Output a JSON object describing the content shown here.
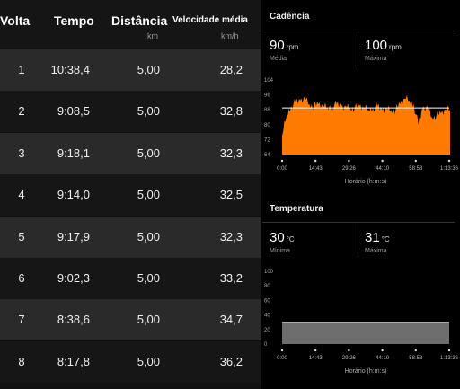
{
  "table": {
    "headers": {
      "lap": "Volta",
      "time": "Tempo",
      "distance": "Distância",
      "distance_unit": "km",
      "speed": "Velocidade média",
      "speed_unit": "km/h"
    },
    "rows": [
      {
        "lap": "1",
        "time": "10:38,4",
        "distance": "5,00",
        "speed": "28,2"
      },
      {
        "lap": "2",
        "time": "9:08,5",
        "distance": "5,00",
        "speed": "32,8"
      },
      {
        "lap": "3",
        "time": "9:18,1",
        "distance": "5,00",
        "speed": "32,3"
      },
      {
        "lap": "4",
        "time": "9:14,0",
        "distance": "5,00",
        "speed": "32,5"
      },
      {
        "lap": "5",
        "time": "9:17,9",
        "distance": "5,00",
        "speed": "32,3"
      },
      {
        "lap": "6",
        "time": "9:02,3",
        "distance": "5,00",
        "speed": "33,2"
      },
      {
        "lap": "7",
        "time": "8:38,6",
        "distance": "5,00",
        "speed": "34,7"
      },
      {
        "lap": "8",
        "time": "8:17,8",
        "distance": "5,00",
        "speed": "36,2"
      }
    ]
  },
  "cadence": {
    "title": "Cadência",
    "avg_value": "90",
    "avg_unit": "rpm",
    "avg_label": "Média",
    "max_value": "100",
    "max_unit": "rpm",
    "max_label": "Máxima"
  },
  "temperature": {
    "title": "Temperatura",
    "min_value": "30",
    "min_unit": "°C",
    "min_label": "Mínima",
    "max_value": "31",
    "max_unit": "°C",
    "max_label": "Máxima"
  },
  "colors": {
    "cadence_fill": "#ff7a00",
    "temperature_fill": "#6e6e6e",
    "avg_line": "#ffffff"
  },
  "chart_data": [
    {
      "type": "area",
      "title": "Cadência",
      "xlabel": "Horário (h:m:s)",
      "x_ticks": [
        "0:00",
        "14:43",
        "29:26",
        "44:10",
        "58:53",
        "1:13:36"
      ],
      "y_ticks": [
        "64",
        "72",
        "80",
        "88",
        "96",
        "104"
      ],
      "ylim": [
        64,
        104
      ],
      "avg_line": 89,
      "series": [
        {
          "x_min": [
            0,
            2,
            4,
            6,
            8,
            10,
            12,
            14,
            16,
            18,
            20,
            22,
            24,
            26,
            28,
            30,
            32,
            34,
            36,
            38,
            40,
            42,
            44,
            46,
            48,
            50,
            52,
            54,
            56,
            58,
            60,
            62,
            64,
            66,
            68,
            70,
            72,
            74
          ],
          "values": [
            74,
            85,
            90,
            92,
            93,
            95,
            91,
            90,
            91,
            90,
            89,
            90,
            91,
            90,
            90,
            89,
            89,
            90,
            89,
            88,
            89,
            90,
            88,
            89,
            88,
            88,
            91,
            94,
            93,
            91,
            80,
            89,
            90,
            84,
            85,
            86,
            88,
            88
          ]
        }
      ]
    },
    {
      "type": "area",
      "title": "Temperatura",
      "xlabel": "Horário (h:m:s)",
      "x_ticks": [
        "0:00",
        "14:43",
        "29:26",
        "44:10",
        "58:53",
        "1:13:36"
      ],
      "y_ticks": [
        "0",
        "20",
        "40",
        "60",
        "80",
        "100"
      ],
      "ylim": [
        0,
        100
      ],
      "series": [
        {
          "x_min": [
            0,
            73.6
          ],
          "values": [
            30,
            30
          ]
        }
      ]
    }
  ]
}
